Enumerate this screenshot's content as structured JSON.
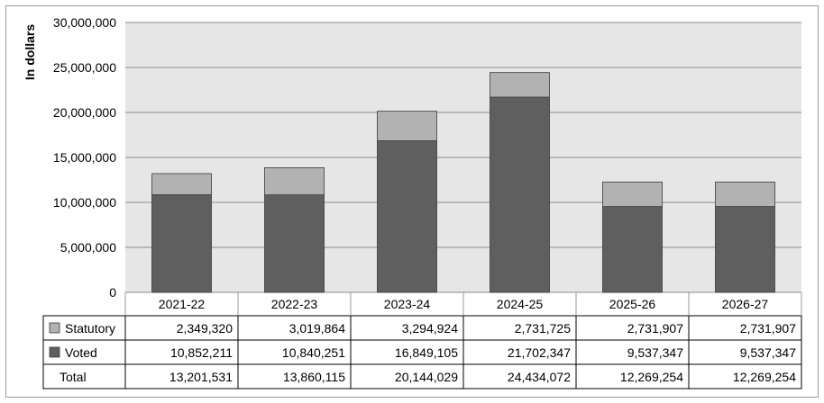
{
  "chart_data": {
    "type": "bar",
    "stacked": true,
    "ylabel": "In dollars",
    "ylim": [
      0,
      30000000
    ],
    "yticks": [
      "0",
      "5,000,000",
      "10,000,000",
      "15,000,000",
      "20,000,000",
      "25,000,000",
      "30,000,000"
    ],
    "categories": [
      "2021-22",
      "2022-23",
      "2023-24",
      "2024-25",
      "2025-26",
      "2026-27"
    ],
    "series": [
      {
        "name": "Voted",
        "color": "#5f5f5f",
        "values": [
          10852211,
          10840251,
          16849105,
          21702347,
          9537347,
          9537347
        ],
        "labels": [
          "10,852,211",
          "10,840,251",
          "16,849,105",
          "21,702,347",
          "9,537,347",
          "9,537,347"
        ]
      },
      {
        "name": "Statutory",
        "color": "#b2b2b2",
        "values": [
          2349320,
          3019864,
          3294924,
          2731725,
          2731907,
          2731907
        ],
        "labels": [
          "2,349,320",
          "3,019,864",
          "3,294,924",
          "2,731,725",
          "2,731,907",
          "2,731,907"
        ]
      }
    ],
    "table_rows": [
      {
        "label": "Statutory",
        "series": 1
      },
      {
        "label": "Voted",
        "series": 0
      },
      {
        "label": "Total",
        "values": [
          "13,201,531",
          "13,860,115",
          "20,144,029",
          "24,434,072",
          "12,269,254",
          "12,269,254"
        ]
      }
    ],
    "grid": true,
    "plot_background": "#e6e6e6"
  }
}
